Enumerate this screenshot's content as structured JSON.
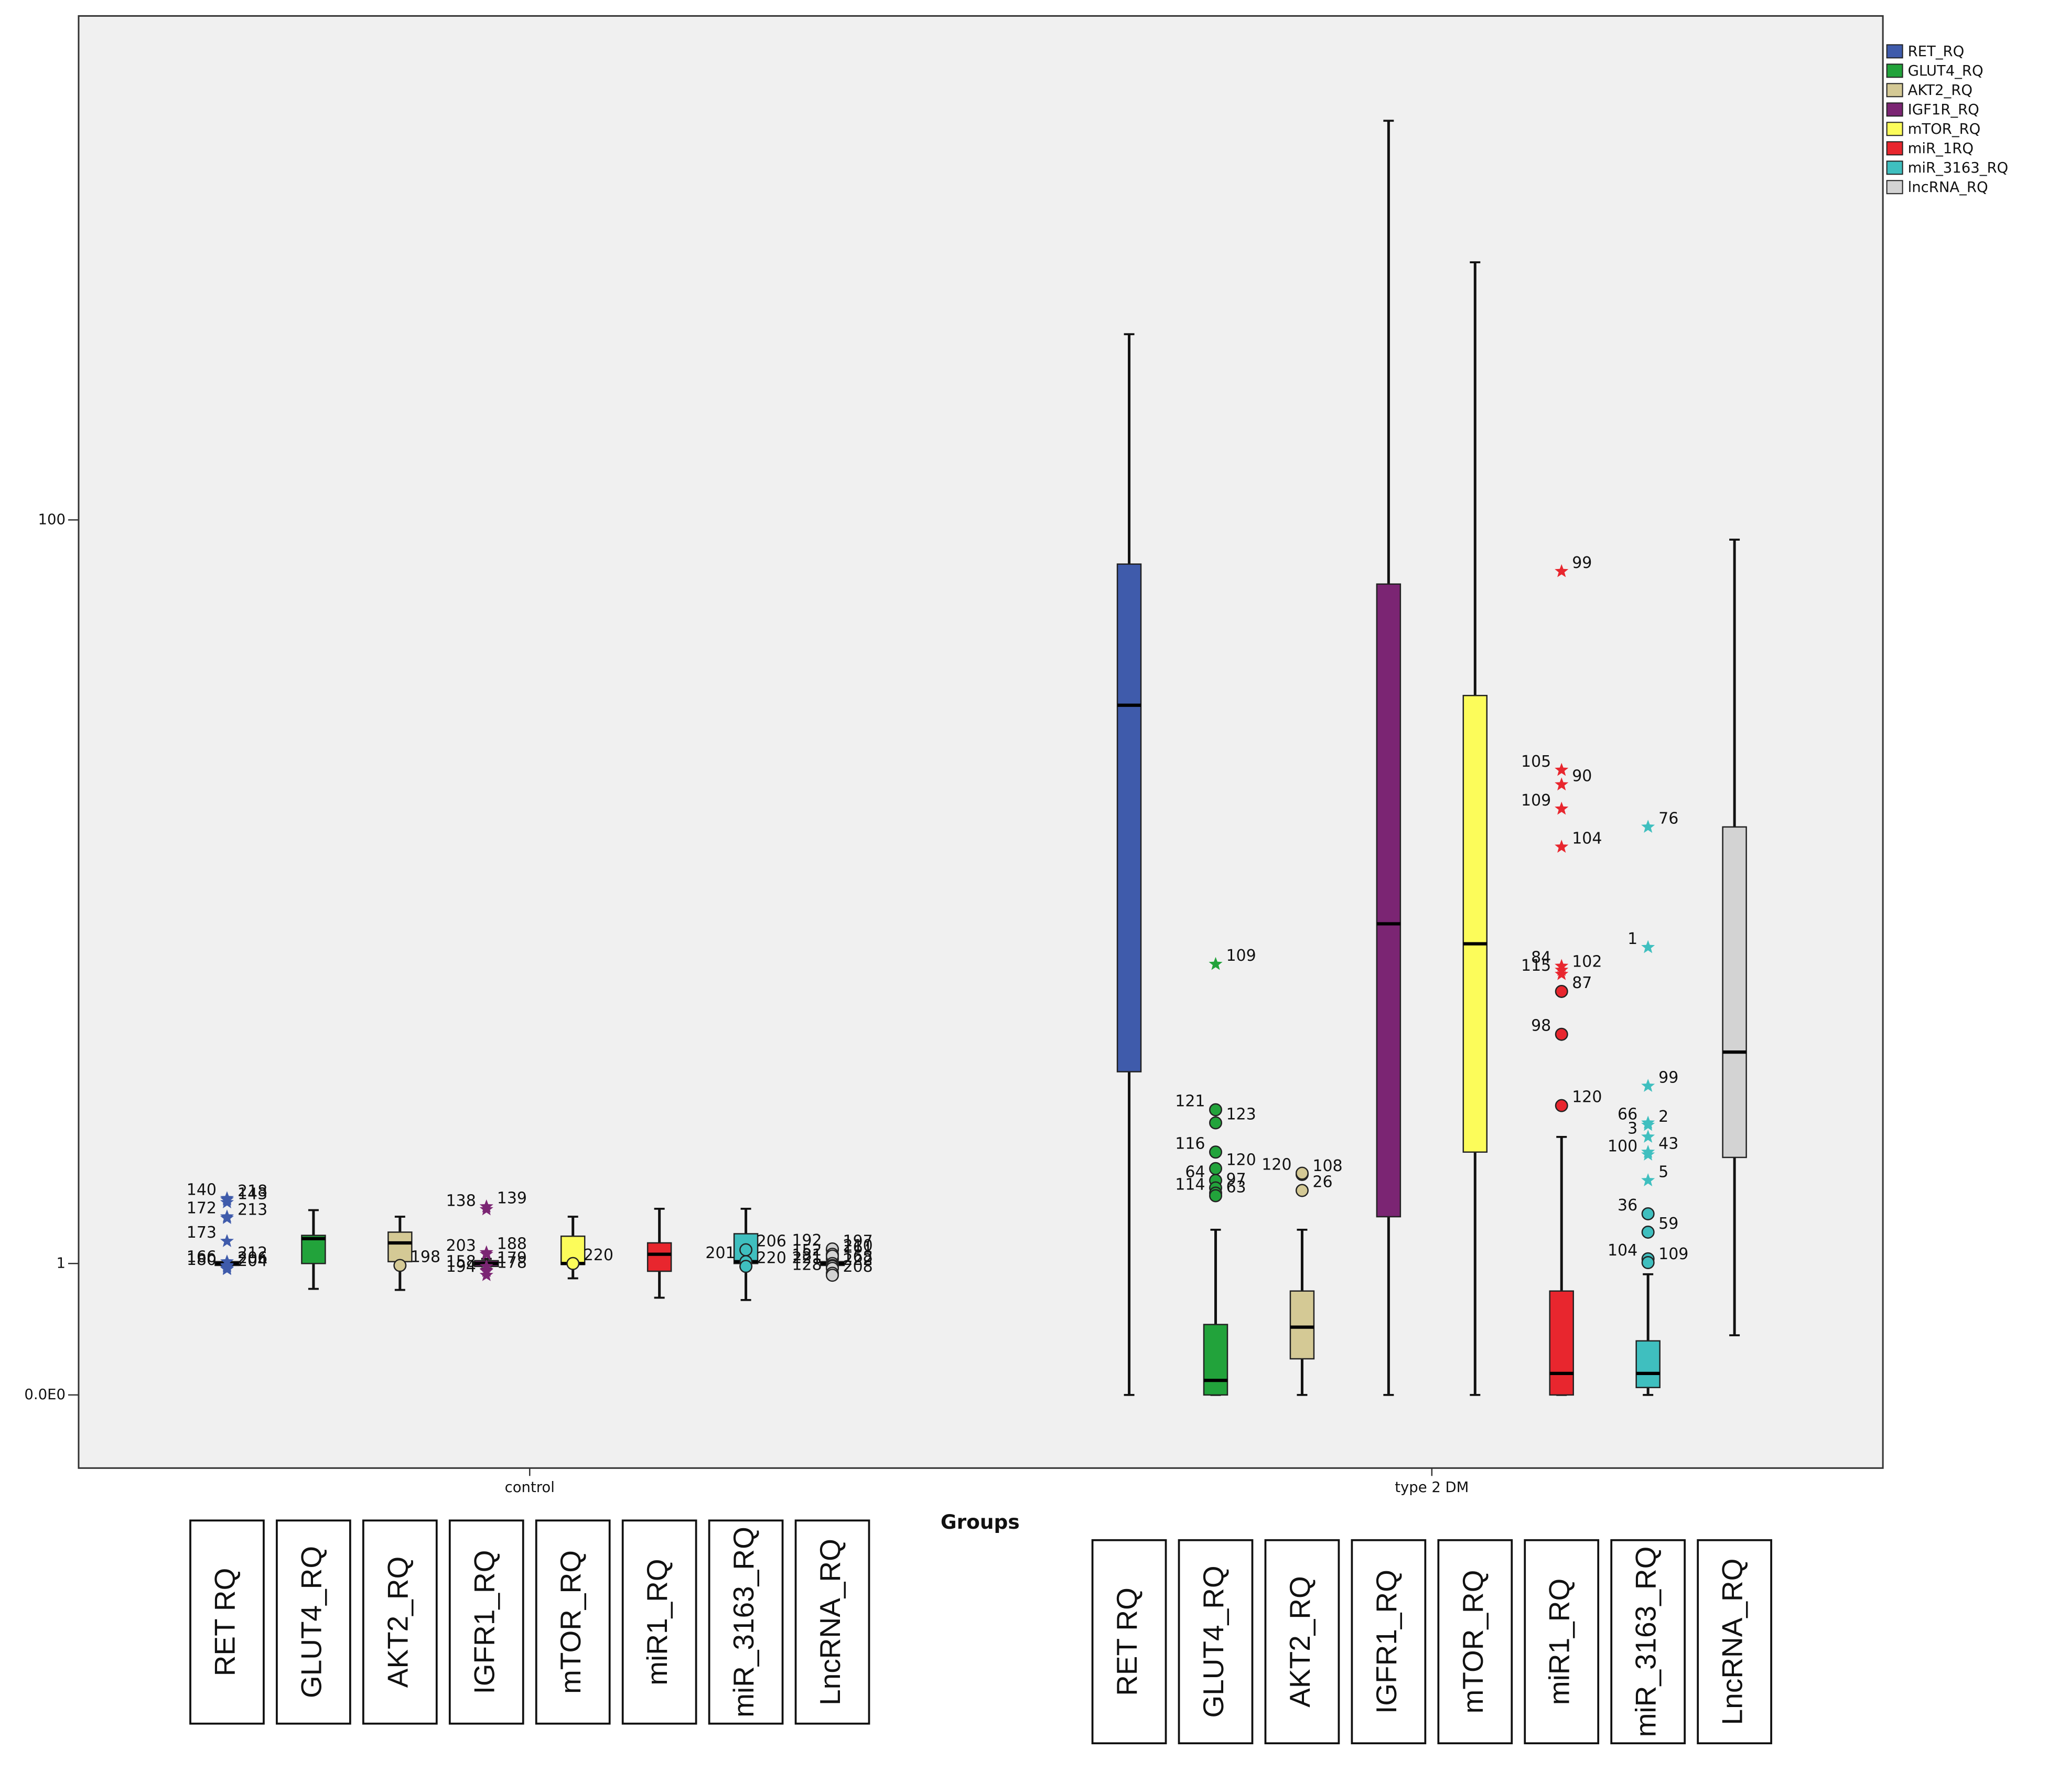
{
  "chart_data": {
    "type": "box",
    "xlabel": "Groups",
    "categories": [
      "control",
      "type 2 DM"
    ],
    "yscale": "log1p",
    "ylim": [
      -0.32,
      1440
    ],
    "yticks": [
      {
        "value": 0,
        "label": "0.0E0"
      },
      1,
      100
    ],
    "legend": "upper right",
    "series": [
      {
        "name": "RET_RQ",
        "color": "#3f5bab",
        "boxes": [
          {
            "whislo": 0.97,
            "q1": 0.98,
            "med": 1.0,
            "q3": 1.02,
            "whishi": 1.03
          },
          {
            "whislo": 0,
            "q1": 4.5,
            "med": 37,
            "q3": 79,
            "whishi": 268
          }
        ],
        "outliers": [
          [
            {
              "value": 1.8,
              "label": "218",
              "marker": "star"
            },
            {
              "value": 1.82,
              "label": "140",
              "marker": "star"
            },
            {
              "value": 1.76,
              "label": "143",
              "marker": "star"
            },
            {
              "value": 1.56,
              "label": "172",
              "marker": "star"
            },
            {
              "value": 1.54,
              "label": "213",
              "marker": "star"
            },
            {
              "value": 1.25,
              "label": "173",
              "marker": "star"
            },
            {
              "value": 1.02,
              "label": "212",
              "marker": "star"
            },
            {
              "value": 0.98,
              "label": "166",
              "marker": "star"
            },
            {
              "value": 0.97,
              "label": "206",
              "marker": "star"
            },
            {
              "value": 0.95,
              "label": "180",
              "marker": "star"
            },
            {
              "value": 0.94,
              "label": "204",
              "marker": "star"
            }
          ],
          []
        ]
      },
      {
        "name": "GLUT4_RQ",
        "color": "#22a33b",
        "boxes": [
          {
            "whislo": 0.75,
            "q1": 1.0,
            "med": 1.28,
            "q3": 1.32,
            "whishi": 1.65
          },
          {
            "whislo": 0,
            "q1": 0,
            "med": 0.08,
            "q3": 0.45,
            "whishi": 1.39
          }
        ],
        "outliers": [
          [],
          [
            {
              "value": 8.7,
              "label": "109",
              "marker": "star"
            },
            {
              "value": 3.5,
              "label": "121",
              "marker": "circle"
            },
            {
              "value": 3.2,
              "label": "123",
              "marker": "circle"
            },
            {
              "value": 2.6,
              "label": "116",
              "marker": "circle"
            },
            {
              "value": 2.3,
              "label": "120",
              "marker": "circle"
            },
            {
              "value": 2.1,
              "label": "64",
              "marker": "circle"
            },
            {
              "value": 1.98,
              "label": "97",
              "marker": "circle"
            },
            {
              "value": 1.9,
              "label": "114",
              "marker": "circle"
            },
            {
              "value": 1.86,
              "label": "63",
              "marker": "circle"
            }
          ]
        ]
      },
      {
        "name": "AKT2_RQ",
        "color": "#d4c995",
        "boxes": [
          {
            "whislo": 0.74,
            "q1": 1.02,
            "med": 1.23,
            "q3": 1.36,
            "whishi": 1.56
          },
          {
            "whislo": 0,
            "q1": 0.21,
            "med": 0.43,
            "q3": 0.73,
            "whishi": 1.39
          }
        ],
        "outliers": [
          [
            {
              "value": 0.98,
              "label": "198",
              "marker": "circle"
            }
          ],
          [
            {
              "value": 2.2,
              "label": "108",
              "marker": "circle"
            },
            {
              "value": 2.22,
              "label": "120",
              "marker": "circle"
            },
            {
              "value": 1.94,
              "label": "26",
              "marker": "circle"
            }
          ]
        ]
      },
      {
        "name": "IGF1R_RQ",
        "color": "#7b2573",
        "boxes": [
          {
            "whislo": 0.95,
            "q1": 0.97,
            "med": 1.0,
            "q3": 1.03,
            "whishi": 1.05
          },
          {
            "whislo": 0,
            "q1": 1.56,
            "med": 11,
            "q3": 71,
            "whishi": 828
          }
        ],
        "outliers": [
          [
            {
              "value": 1.7,
              "label": "139",
              "marker": "star"
            },
            {
              "value": 1.66,
              "label": "138",
              "marker": "star"
            },
            {
              "value": 1.12,
              "label": "188",
              "marker": "star"
            },
            {
              "value": 1.1,
              "label": "203",
              "marker": "star"
            },
            {
              "value": 0.97,
              "label": "179",
              "marker": "star"
            },
            {
              "value": 0.93,
              "label": "158",
              "marker": "star"
            },
            {
              "value": 0.92,
              "label": "178",
              "marker": "star"
            },
            {
              "value": 0.88,
              "label": "194",
              "marker": "star"
            }
          ],
          []
        ]
      },
      {
        "name": "mTOR_RQ",
        "color": "#fcfc5a",
        "boxes": [
          {
            "whislo": 0.85,
            "q1": 0.99,
            "med": 1.0,
            "q3": 1.31,
            "whishi": 1.56
          },
          {
            "whislo": 0,
            "q1": 2.6,
            "med": 9.8,
            "q3": 39,
            "whishi": 392
          }
        ],
        "outliers": [
          [
            {
              "value": 1.0,
              "label": "220",
              "marker": "circle"
            }
          ],
          []
        ]
      },
      {
        "name": "miR_1RQ",
        "color": "#e8262e",
        "boxes": [
          {
            "whislo": 0.67,
            "q1": 0.92,
            "med": 1.1,
            "q3": 1.23,
            "whishi": 1.67
          },
          {
            "whislo": 0,
            "q1": 0,
            "med": 0.12,
            "q3": 0.73,
            "whishi": 2.9
          }
        ],
        "outliers": [
          [],
          [
            {
              "value": 76,
              "label": "99",
              "marker": "star"
            },
            {
              "value": 26,
              "label": "105",
              "marker": "star"
            },
            {
              "value": 24,
              "label": "90",
              "marker": "star"
            },
            {
              "value": 21,
              "label": "109",
              "marker": "star"
            },
            {
              "value": 17,
              "label": "104",
              "marker": "star"
            },
            {
              "value": 8.6,
              "label": "84",
              "marker": "star"
            },
            {
              "value": 8.4,
              "label": "102",
              "marker": "star"
            },
            {
              "value": 8.2,
              "label": "115",
              "marker": "star"
            },
            {
              "value": 7.4,
              "label": "87",
              "marker": "circle"
            },
            {
              "value": 5.7,
              "label": "98",
              "marker": "circle"
            },
            {
              "value": 3.6,
              "label": "120",
              "marker": "circle"
            }
          ]
        ]
      },
      {
        "name": "miR_3163_RQ",
        "color": "#3fbfbf",
        "boxes": [
          {
            "whislo": 0.65,
            "q1": 1.0,
            "med": 1.02,
            "q3": 1.34,
            "whishi": 1.67
          },
          {
            "whislo": 0,
            "q1": 0.04,
            "med": 0.12,
            "q3": 0.33,
            "whishi": 0.89
          }
        ],
        "outliers": [
          [
            {
              "value": 1.15,
              "label": "206",
              "marker": "circle"
            },
            {
              "value": 1.02,
              "label": "201",
              "marker": "circle"
            },
            {
              "value": 0.97,
              "label": "220",
              "marker": "circle"
            }
          ],
          [
            {
              "value": 19,
              "label": "76",
              "marker": "star"
            },
            {
              "value": 9.6,
              "label": "1",
              "marker": "star"
            },
            {
              "value": 4.1,
              "label": "99",
              "marker": "star"
            },
            {
              "value": 3.2,
              "label": "66",
              "marker": "star"
            },
            {
              "value": 3.15,
              "label": "2",
              "marker": "star"
            },
            {
              "value": 2.9,
              "label": "3",
              "marker": "star"
            },
            {
              "value": 2.6,
              "label": "43",
              "marker": "star"
            },
            {
              "value": 2.55,
              "label": "100",
              "marker": "star"
            },
            {
              "value": 2.1,
              "label": "5",
              "marker": "star"
            },
            {
              "value": 1.6,
              "label": "36",
              "marker": "circle"
            },
            {
              "value": 1.36,
              "label": "59",
              "marker": "circle"
            },
            {
              "value": 1.05,
              "label": "104",
              "marker": "circle"
            },
            {
              "value": 1.01,
              "label": "109",
              "marker": "circle"
            }
          ]
        ]
      },
      {
        "name": "lncRNA_RQ",
        "color": "#d3d3d3",
        "boxes": [
          {
            "whislo": 0.97,
            "q1": 0.98,
            "med": 1.0,
            "q3": 1.02,
            "whishi": 1.03
          },
          {
            "whislo": 0.37,
            "q1": 2.5,
            "med": 5.1,
            "q3": 19,
            "whishi": 90
          }
        ],
        "outliers": [
          [
            {
              "value": 1.15,
              "label": "197",
              "marker": "circle"
            },
            {
              "value": 1.16,
              "label": "192",
              "marker": "circle"
            },
            {
              "value": 1.1,
              "label": "210",
              "marker": "circle"
            },
            {
              "value": 1.05,
              "label": "152",
              "marker": "circle"
            },
            {
              "value": 1.08,
              "label": "161",
              "marker": "circle"
            },
            {
              "value": 1.0,
              "label": "181",
              "marker": "circle"
            },
            {
              "value": 0.98,
              "label": "168",
              "marker": "circle"
            },
            {
              "value": 0.97,
              "label": "221",
              "marker": "circle"
            },
            {
              "value": 0.95,
              "label": "222",
              "marker": "circle"
            },
            {
              "value": 0.9,
              "label": "128",
              "marker": "circle"
            },
            {
              "value": 0.88,
              "label": "208",
              "marker": "circle"
            }
          ],
          []
        ]
      }
    ],
    "annotations": [
      [
        "RET RQ",
        "GLUT4_RQ",
        "AKT2_RQ",
        "IGFR1_RQ",
        "mTOR_RQ",
        "miR1_RQ",
        "miR_3163_RQ",
        "LncRNA_RQ"
      ],
      [
        "RET RQ",
        "GLUT4_RQ",
        "AKT2_RQ",
        "IGFR1_RQ",
        "mTOR_RQ",
        "miR1_RQ",
        "miR_3163_RQ",
        "LncRNA_RQ"
      ]
    ],
    "annotation_colors": [
      "#4472c4",
      "#00b050",
      "#bfae52",
      "#7030a0",
      "#ffff00",
      "#ff0000",
      "#4bacc6",
      "#595959"
    ]
  }
}
